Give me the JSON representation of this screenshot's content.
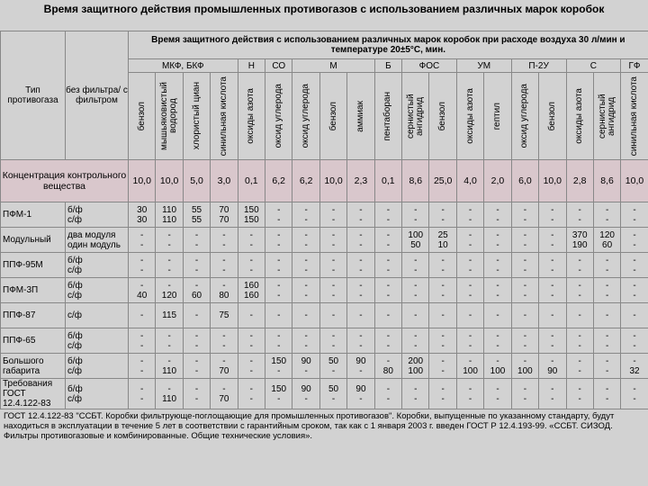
{
  "header": {
    "title": "Время защитного действия промышленных противогазов с использованием различных марок коробок"
  },
  "table": {
    "subtitle": "Время защитного действия с использованием различных марок коробок при расходе воздуха 30 л/мин и температуре 20±5°С, мин.",
    "col_type": "Тип противогаза",
    "col_mode": "без фильтра/ с фильтром",
    "groups": [
      {
        "label": "МКФ, БКФ",
        "substances": [
          "бензол",
          "мышьяковистый водород",
          "хлористый циан",
          "синильная кислота"
        ]
      },
      {
        "label": "Н",
        "substances": [
          "оксиды азота"
        ]
      },
      {
        "label": "СО",
        "substances": [
          "оксид углерода"
        ]
      },
      {
        "label": "М",
        "substances": [
          "оксид углерода",
          "бензол",
          "аммиак"
        ]
      },
      {
        "label": "Б",
        "substances": [
          "пентаборан"
        ]
      },
      {
        "label": "ФОС",
        "substances": [
          "сернистый ангидрид",
          "бензол"
        ]
      },
      {
        "label": "УМ",
        "substances": [
          "оксиды азота",
          "гептил"
        ]
      },
      {
        "label": "П-2У",
        "substances": [
          "оксид углерода",
          "бензол"
        ]
      },
      {
        "label": "С",
        "substances": [
          "оксиды азота",
          "сернистый ангидрид"
        ]
      },
      {
        "label": "ГФ",
        "substances": [
          "синильная кислота"
        ]
      }
    ],
    "concentration": {
      "label": "Концентрация контрольного вещества",
      "values": [
        "10,0",
        "10,0",
        "5,0",
        "3,0",
        "0,1",
        "6,2",
        "6,2",
        "10,0",
        "2,3",
        "0,1",
        "8,6",
        "25,0",
        "4,0",
        "2,0",
        "6,0",
        "10,0",
        "2,8",
        "8,6",
        "10,0"
      ]
    },
    "rows": [
      {
        "type": "ПФМ-1",
        "mode": [
          "б/ф",
          "с/ф"
        ],
        "cells": [
          [
            "30",
            "30"
          ],
          [
            "110",
            "110"
          ],
          [
            "55",
            "55"
          ],
          [
            "70",
            "70"
          ],
          [
            "150",
            "150"
          ],
          [
            "-",
            "-"
          ],
          [
            "-",
            "-"
          ],
          [
            "-",
            "-"
          ],
          [
            "-",
            "-"
          ],
          [
            "-",
            "-"
          ],
          [
            "-",
            "-"
          ],
          [
            "-",
            "-"
          ],
          [
            "-",
            "-"
          ],
          [
            "-",
            "-"
          ],
          [
            "-",
            "-"
          ],
          [
            "-",
            "-"
          ],
          [
            "-",
            "-"
          ],
          [
            "-",
            "-"
          ],
          [
            "-",
            "-"
          ]
        ]
      },
      {
        "type": "Модульный",
        "mode": [
          "два модуля",
          "один модуль"
        ],
        "cells": [
          [
            "-",
            "-"
          ],
          [
            "-",
            "-"
          ],
          [
            "-",
            "-"
          ],
          [
            "-",
            "-"
          ],
          [
            "-",
            "-"
          ],
          [
            "-",
            "-"
          ],
          [
            "-",
            "-"
          ],
          [
            "-",
            "-"
          ],
          [
            "-",
            "-"
          ],
          [
            "-",
            "-"
          ],
          [
            "100",
            "50"
          ],
          [
            "25",
            "10"
          ],
          [
            "-",
            "-"
          ],
          [
            "-",
            "-"
          ],
          [
            "-",
            "-"
          ],
          [
            "-",
            "-"
          ],
          [
            "370",
            "190"
          ],
          [
            "120",
            "60"
          ],
          [
            "-",
            "-"
          ]
        ]
      },
      {
        "type": "ППФ-95М",
        "mode": [
          "б/ф",
          "с/ф"
        ],
        "cells": [
          [
            "-",
            "-"
          ],
          [
            "-",
            "-"
          ],
          [
            "-",
            "-"
          ],
          [
            "-",
            "-"
          ],
          [
            "-",
            "-"
          ],
          [
            "-",
            "-"
          ],
          [
            "-",
            "-"
          ],
          [
            "-",
            "-"
          ],
          [
            "-",
            "-"
          ],
          [
            "-",
            "-"
          ],
          [
            "-",
            "-"
          ],
          [
            "-",
            "-"
          ],
          [
            "-",
            "-"
          ],
          [
            "-",
            "-"
          ],
          [
            "-",
            "-"
          ],
          [
            "-",
            "-"
          ],
          [
            "-",
            "-"
          ],
          [
            "-",
            "-"
          ],
          [
            "-",
            "-"
          ]
        ]
      },
      {
        "type": "ПФМ-3П",
        "mode": [
          "б/ф",
          "с/ф"
        ],
        "cells": [
          [
            "-",
            "40"
          ],
          [
            "-",
            "120"
          ],
          [
            "-",
            "60"
          ],
          [
            "-",
            "80"
          ],
          [
            "160",
            "160"
          ],
          [
            "-",
            "-"
          ],
          [
            "-",
            "-"
          ],
          [
            "-",
            "-"
          ],
          [
            "-",
            "-"
          ],
          [
            "-",
            "-"
          ],
          [
            "-",
            "-"
          ],
          [
            "-",
            "-"
          ],
          [
            "-",
            "-"
          ],
          [
            "-",
            "-"
          ],
          [
            "-",
            "-"
          ],
          [
            "-",
            "-"
          ],
          [
            "-",
            "-"
          ],
          [
            "-",
            "-"
          ],
          [
            "-",
            "-"
          ]
        ]
      },
      {
        "type": "ППФ-87",
        "mode": [
          "с/ф"
        ],
        "cells": [
          [
            "-"
          ],
          [
            "115"
          ],
          [
            "-"
          ],
          [
            "75"
          ],
          [
            "-"
          ],
          [
            "-"
          ],
          [
            "-"
          ],
          [
            "-"
          ],
          [
            "-"
          ],
          [
            "-"
          ],
          [
            "-"
          ],
          [
            "-"
          ],
          [
            "-"
          ],
          [
            "-"
          ],
          [
            "-"
          ],
          [
            "-"
          ],
          [
            "-"
          ],
          [
            "-"
          ],
          [
            "-"
          ]
        ]
      },
      {
        "type": "ППФ-65",
        "mode": [
          "б/ф",
          "с/ф"
        ],
        "cells": [
          [
            "-",
            "-"
          ],
          [
            "-",
            "-"
          ],
          [
            "-",
            "-"
          ],
          [
            "-",
            "-"
          ],
          [
            "-",
            "-"
          ],
          [
            "-",
            "-"
          ],
          [
            "-",
            "-"
          ],
          [
            "-",
            "-"
          ],
          [
            "-",
            "-"
          ],
          [
            "-",
            "-"
          ],
          [
            "-",
            "-"
          ],
          [
            "-",
            "-"
          ],
          [
            "-",
            "-"
          ],
          [
            "-",
            "-"
          ],
          [
            "-",
            "-"
          ],
          [
            "-",
            "-"
          ],
          [
            "-",
            "-"
          ],
          [
            "-",
            "-"
          ],
          [
            "-",
            "-"
          ]
        ]
      },
      {
        "type": "Большого габарита",
        "mode": [
          "б/ф",
          "с/ф"
        ],
        "cells": [
          [
            "-",
            "-"
          ],
          [
            "-",
            "110"
          ],
          [
            "-",
            "-"
          ],
          [
            "-",
            "70"
          ],
          [
            "-",
            "-"
          ],
          [
            "150",
            "-"
          ],
          [
            "90",
            "-"
          ],
          [
            "50",
            "-"
          ],
          [
            "90",
            "-"
          ],
          [
            "-",
            "80"
          ],
          [
            "200",
            "100"
          ],
          [
            "-",
            "-"
          ],
          [
            "-",
            "100"
          ],
          [
            "-",
            "100"
          ],
          [
            "-",
            "100"
          ],
          [
            "-",
            "90"
          ],
          [
            "-",
            "-"
          ],
          [
            "-",
            "-"
          ],
          [
            "-",
            "32"
          ]
        ]
      },
      {
        "type": "Требования ГОСТ 12.4.122-83",
        "mode": [
          "б/ф",
          "с/ф"
        ],
        "cells": [
          [
            "-",
            "-"
          ],
          [
            "-",
            "110"
          ],
          [
            "-",
            "-"
          ],
          [
            "-",
            "70"
          ],
          [
            "-",
            "-"
          ],
          [
            "150",
            "-"
          ],
          [
            "90",
            "-"
          ],
          [
            "50",
            "-"
          ],
          [
            "90",
            "-"
          ],
          [
            "-",
            "-"
          ],
          [
            "-",
            "-"
          ],
          [
            "-",
            "-"
          ],
          [
            "-",
            "-"
          ],
          [
            "-",
            "-"
          ],
          [
            "-",
            "-"
          ],
          [
            "-",
            "-"
          ],
          [
            "-",
            "-"
          ],
          [
            "-",
            "-"
          ],
          [
            "-",
            "-"
          ]
        ]
      }
    ]
  },
  "footnote": "ГОСТ 12.4.122-83 \"ССБТ. Коробки фильтрующе-поглощающие для промышленных противогазов\". Коробки, выпущенные по указанному стандарту, будут находиться в эксплуатации в течение 5 лет в соответствии с гарантийным сроком, так как с 1 января 2003 г. введен ГОСТ Р 12.4.193-99. «ССБТ. СИЗОД. Фильтры противогазовые и комбинированные. Общие технические условия»."
}
